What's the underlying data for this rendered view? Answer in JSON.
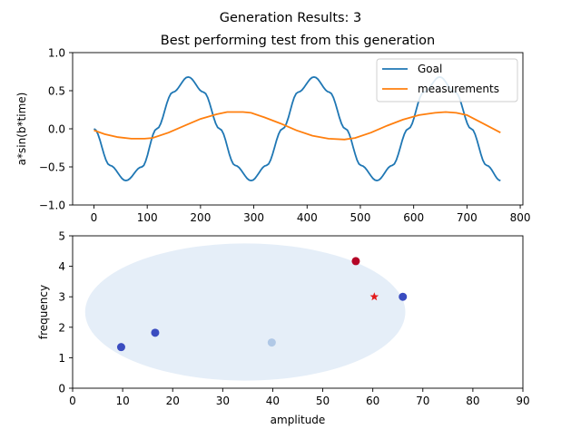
{
  "figure": {
    "suptitle": "Generation Results: 3",
    "subtitle": "Best performing test from this generation"
  },
  "colors": {
    "goal": "#1f77b4",
    "measurements": "#ff7f0e",
    "ellipse": "#dce8f5",
    "best_star": "#e31a1c"
  },
  "chart_data": [
    {
      "type": "line",
      "title": "Best performing test from this generation",
      "xlabel": "",
      "ylabel": "a*sin(b*time)",
      "xlim": [
        -40,
        805
      ],
      "ylim": [
        -1.0,
        1.0
      ],
      "xticks": [
        0,
        100,
        200,
        300,
        400,
        500,
        600,
        700,
        800
      ],
      "xtick_labels": [
        "0",
        "100",
        "200",
        "300",
        "400",
        "500",
        "600",
        "700",
        "800"
      ],
      "yticks": [
        -1.0,
        -0.5,
        0.0,
        0.5,
        1.0
      ],
      "ytick_labels": [
        "−1.0",
        "−0.5",
        "0.0",
        "0.5",
        "1.0"
      ],
      "legend_position": "top-right",
      "series": [
        {
          "name": "Goal",
          "x": [
            0,
            30,
            60,
            90,
            118,
            148,
            177,
            206,
            236,
            265,
            295,
            324,
            354,
            383,
            413,
            442,
            472,
            501,
            531,
            560,
            590,
            619,
            649,
            678,
            708,
            737,
            763
          ],
          "values": [
            0.0,
            -0.48,
            -0.68,
            -0.5,
            0.0,
            0.48,
            0.68,
            0.48,
            0.0,
            -0.48,
            -0.68,
            -0.48,
            0.0,
            0.48,
            0.68,
            0.48,
            0.0,
            -0.48,
            -0.68,
            -0.48,
            0.0,
            0.48,
            0.68,
            0.48,
            0.0,
            -0.48,
            -0.68
          ]
        },
        {
          "name": "measurements",
          "x": [
            0,
            20,
            45,
            70,
            95,
            110,
            140,
            170,
            200,
            230,
            250,
            280,
            295,
            320,
            350,
            380,
            410,
            440,
            470,
            490,
            520,
            550,
            580,
            610,
            640,
            660,
            680,
            700,
            730,
            763
          ],
          "values": [
            -0.02,
            -0.07,
            -0.11,
            -0.13,
            -0.13,
            -0.12,
            -0.05,
            0.04,
            0.13,
            0.19,
            0.22,
            0.22,
            0.21,
            0.15,
            0.07,
            -0.02,
            -0.09,
            -0.13,
            -0.14,
            -0.12,
            -0.05,
            0.04,
            0.12,
            0.18,
            0.21,
            0.22,
            0.21,
            0.18,
            0.07,
            -0.05
          ]
        }
      ]
    },
    {
      "type": "scatter",
      "title": "",
      "xlabel": "amplitude",
      "ylabel": "frequency",
      "xlim": [
        0,
        90
      ],
      "ylim": [
        0,
        5
      ],
      "xticks": [
        0,
        10,
        20,
        30,
        40,
        50,
        60,
        70,
        80,
        90
      ],
      "xtick_labels": [
        "0",
        "10",
        "20",
        "30",
        "40",
        "50",
        "60",
        "70",
        "80",
        "90"
      ],
      "yticks": [
        0,
        1,
        2,
        3,
        4,
        5
      ],
      "ytick_labels": [
        "0",
        "1",
        "2",
        "3",
        "4",
        "5"
      ],
      "ellipse": {
        "center": [
          34.5,
          2.5
        ],
        "radii": [
          32,
          2.25
        ]
      },
      "points": [
        {
          "x": 9.7,
          "y": 1.35,
          "color": "#3a4cc0"
        },
        {
          "x": 16.5,
          "y": 1.82,
          "color": "#3a4cc0"
        },
        {
          "x": 39.8,
          "y": 1.5,
          "color": "#b0c8e6"
        },
        {
          "x": 56.6,
          "y": 4.17,
          "color": "#b40426"
        },
        {
          "x": 66.0,
          "y": 3.0,
          "color": "#3a4cc0"
        }
      ],
      "best": {
        "x": 60.3,
        "y": 3.0,
        "marker": "star"
      }
    }
  ]
}
